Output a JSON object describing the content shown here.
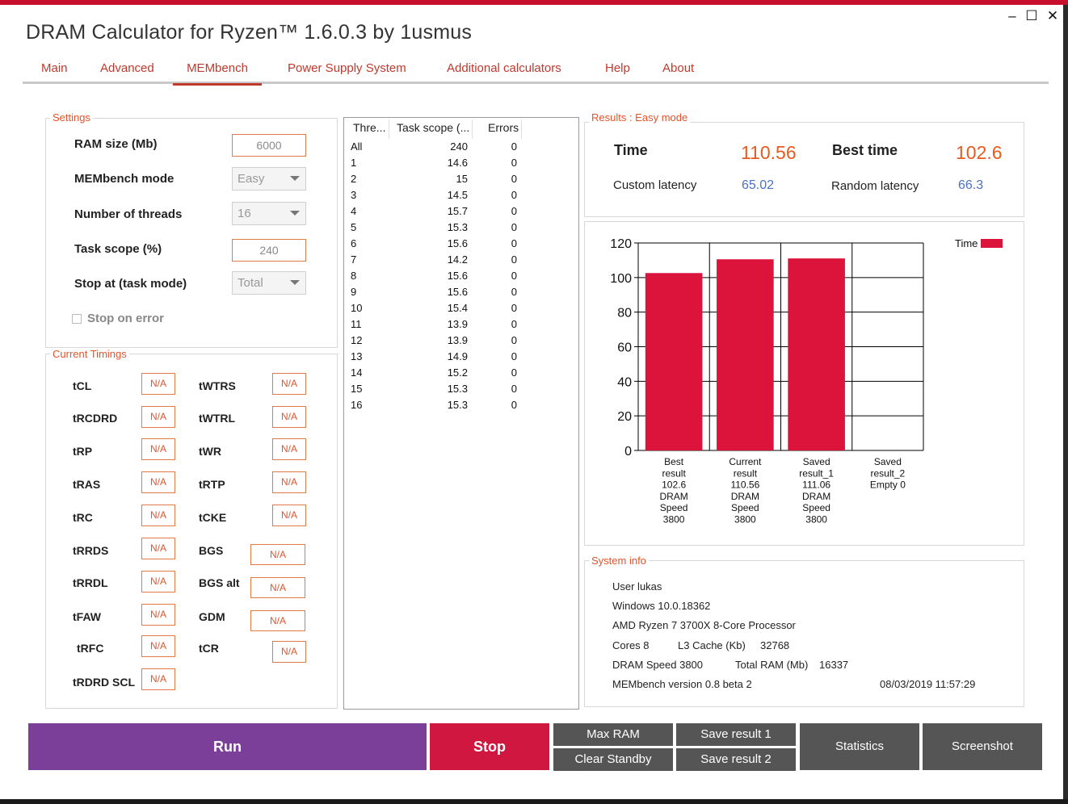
{
  "window": {
    "title": "DRAM Calculator for Ryzen™ 1.6.0.3 by 1usmus",
    "controls": {
      "minimize": "–",
      "maximize": "☐",
      "close": "✕"
    }
  },
  "tabs": [
    "Main",
    "Advanced",
    "MEMbench",
    "Power Supply System",
    "Additional calculators",
    "Help",
    "About"
  ],
  "active_tab": "MEMbench",
  "settings": {
    "legend": "Settings",
    "ram_size_label": "RAM size (Mb)",
    "ram_size_value": "6000",
    "mode_label": "MEMbench mode",
    "mode_value": "Easy",
    "threads_label": "Number of threads",
    "threads_value": "16",
    "task_scope_label": "Task scope (%)",
    "task_scope_value": "240",
    "stop_at_label": "Stop at (task mode)",
    "stop_at_value": "Total",
    "stop_on_error_label": "Stop on error",
    "stop_on_error_checked": false
  },
  "timings": {
    "legend": "Current Timings",
    "left": [
      {
        "name": "tCL",
        "value": "N/A"
      },
      {
        "name": "tRCDRD",
        "value": "N/A"
      },
      {
        "name": "tRP",
        "value": "N/A"
      },
      {
        "name": "tRAS",
        "value": "N/A"
      },
      {
        "name": "tRC",
        "value": "N/A"
      },
      {
        "name": "tRRDS",
        "value": "N/A"
      },
      {
        "name": "tRRDL",
        "value": "N/A"
      },
      {
        "name": "tFAW",
        "value": "N/A"
      },
      {
        "name": "tRFC",
        "value": "N/A"
      },
      {
        "name": "tRDRD SCL",
        "value": "N/A"
      }
    ],
    "right": [
      {
        "name": "tWTRS",
        "value": "N/A"
      },
      {
        "name": "tWTRL",
        "value": "N/A"
      },
      {
        "name": "tWR",
        "value": "N/A"
      },
      {
        "name": "tRTP",
        "value": "N/A"
      },
      {
        "name": "tCKE",
        "value": "N/A"
      },
      {
        "name": "BGS",
        "value": "N/A"
      },
      {
        "name": "BGS alt",
        "value": "N/A"
      },
      {
        "name": "GDM",
        "value": "N/A"
      },
      {
        "name": "tCR",
        "value": "N/A"
      }
    ]
  },
  "thread_table": {
    "columns": [
      "Thre...",
      "Task scope (...",
      "Errors"
    ],
    "rows": [
      [
        "All",
        "240",
        "0"
      ],
      [
        "1",
        "14.6",
        "0"
      ],
      [
        "2",
        "15",
        "0"
      ],
      [
        "3",
        "14.5",
        "0"
      ],
      [
        "4",
        "15.7",
        "0"
      ],
      [
        "5",
        "15.3",
        "0"
      ],
      [
        "6",
        "15.6",
        "0"
      ],
      [
        "7",
        "14.2",
        "0"
      ],
      [
        "8",
        "15.6",
        "0"
      ],
      [
        "9",
        "15.6",
        "0"
      ],
      [
        "10",
        "15.4",
        "0"
      ],
      [
        "11",
        "13.9",
        "0"
      ],
      [
        "12",
        "13.9",
        "0"
      ],
      [
        "13",
        "14.9",
        "0"
      ],
      [
        "14",
        "15.2",
        "0"
      ],
      [
        "15",
        "15.3",
        "0"
      ],
      [
        "16",
        "15.3",
        "0"
      ]
    ]
  },
  "results": {
    "legend": "Results : Easy mode",
    "time_label": "Time",
    "time_value": "110.56",
    "best_time_label": "Best time",
    "best_time_value": "102.6",
    "custom_latency_label": "Custom latency",
    "custom_latency_value": "65.02",
    "random_latency_label": "Random latency",
    "random_latency_value": "66.3"
  },
  "chart_data": {
    "type": "bar",
    "series": [
      {
        "name": "Time",
        "values": [
          102.6,
          110.56,
          111.06,
          0
        ]
      }
    ],
    "categories": [
      [
        "Best",
        "result",
        "102.6",
        "DRAM",
        "Speed",
        "3800"
      ],
      [
        "Current",
        "result",
        "110.56",
        "DRAM",
        "Speed",
        "3800"
      ],
      [
        "Saved",
        "result_1",
        "111.06",
        "DRAM",
        "Speed",
        "3800"
      ],
      [
        "Saved",
        "result_2",
        "Empty   0"
      ]
    ],
    "values": [
      102.6,
      110.56,
      111.06,
      0
    ],
    "ylim": [
      0,
      120
    ],
    "yticks": [
      "0",
      "20",
      "40",
      "60",
      "80",
      "100",
      "120"
    ],
    "legend": "Time",
    "legend_position": "top-right",
    "grid": true,
    "bar_color": "#dc143c"
  },
  "system_info": {
    "legend": "System info",
    "user": "User lukas",
    "os": "Windows 10.0.18362",
    "cpu": "AMD Ryzen 7 3700X 8-Core Processor",
    "cores": "Cores 8",
    "l3_label": "L3 Cache (Kb)",
    "l3_value": "32768",
    "dram_speed": "DRAM Speed 3800",
    "total_ram_label": "Total RAM (Mb)",
    "total_ram_value": "16337",
    "version": "MEMbench version 0.8 beta 2",
    "datetime": "08/03/2019 11:57:29"
  },
  "buttons": {
    "run": "Run",
    "stop": "Stop",
    "max_ram": "Max RAM",
    "clear_standby": "Clear Standby",
    "save_result_1": "Save result 1",
    "save_result_2": "Save result 2",
    "statistics": "Statistics",
    "screenshot": "Screenshot"
  },
  "colors": {
    "accent": "#c0392b",
    "run": "#7b3f99",
    "stop": "#d0173f",
    "dark_button": "#555555",
    "value_orange": "#e85a1f",
    "value_blue": "#4a72c2"
  }
}
